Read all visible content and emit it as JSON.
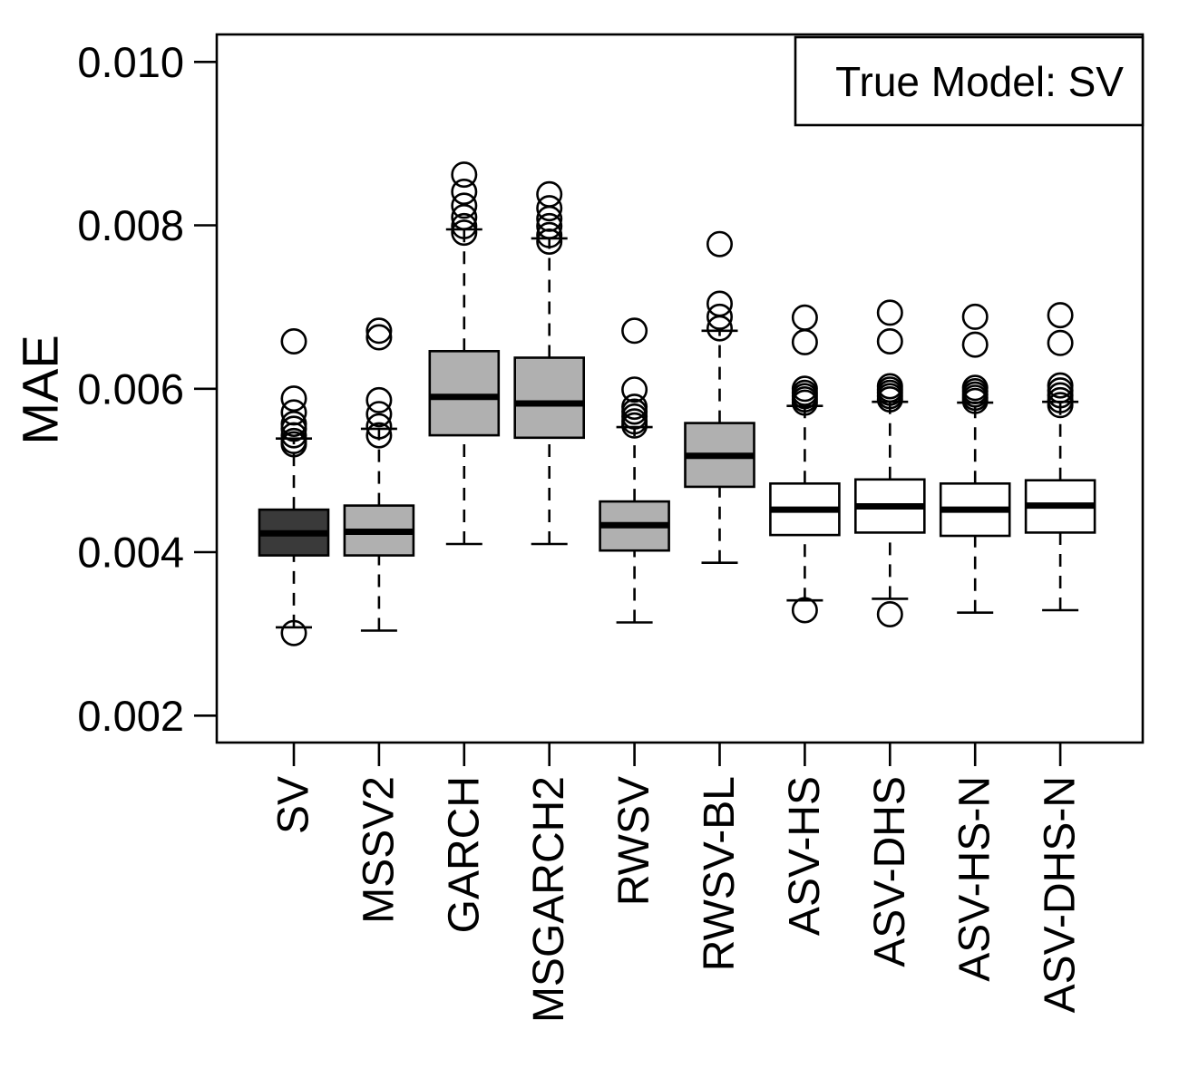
{
  "figure": {
    "background": "#ffffff",
    "frame_color": "#000000"
  },
  "chart_data": {
    "type": "boxplot",
    "title": "",
    "xlabel": "",
    "ylabel": "MAE",
    "legend": {
      "position": "top-right",
      "label": "True Model: SV"
    },
    "grid": false,
    "ylim": [
      0.00167,
      0.01034
    ],
    "ytick_values": [
      0.002,
      0.004,
      0.006,
      0.008,
      0.01
    ],
    "ytick_labels": [
      "0.002",
      "0.004",
      "0.006",
      "0.008",
      "0.010"
    ],
    "categories": [
      "SV",
      "MSSV2",
      "GARCH",
      "MSGARCH2",
      "RWSV",
      "RWSV-BL",
      "ASV-HS",
      "ASV-DHS",
      "ASV-HS-N",
      "ASV-DHS-N"
    ],
    "colors": {
      "highlight_fill": "#3a3a3a",
      "gray_fill": "#b0b0b0",
      "white_fill": "#ffffff",
      "stroke": "#000000"
    },
    "boxes": [
      {
        "label": "SV",
        "fill": "#3a3a3a",
        "whisker_low": 0.00308,
        "q1": 0.00396,
        "median": 0.00423,
        "q3": 0.00452,
        "whisker_high": 0.00539,
        "outliers": [
          0.00301,
          0.00532,
          0.00536,
          0.00543,
          0.00551,
          0.00557,
          0.00571,
          0.00588,
          0.00658
        ]
      },
      {
        "label": "MSSV2",
        "fill": "#b0b0b0",
        "whisker_low": 0.00304,
        "q1": 0.00396,
        "median": 0.00425,
        "q3": 0.00457,
        "whisker_high": 0.00551,
        "outliers": [
          0.00543,
          0.00554,
          0.00569,
          0.00586,
          0.00663,
          0.00671
        ]
      },
      {
        "label": "GARCH",
        "fill": "#b0b0b0",
        "whisker_low": 0.0041,
        "q1": 0.00543,
        "median": 0.0059,
        "q3": 0.00646,
        "whisker_high": 0.00795,
        "outliers": [
          0.00791,
          0.00799,
          0.0081,
          0.00824,
          0.00841,
          0.00862
        ]
      },
      {
        "label": "MSGARCH2",
        "fill": "#b0b0b0",
        "whisker_low": 0.0041,
        "q1": 0.0054,
        "median": 0.00582,
        "q3": 0.00638,
        "whisker_high": 0.00784,
        "outliers": [
          0.0078,
          0.00788,
          0.00799,
          0.00808,
          0.00821,
          0.00838
        ]
      },
      {
        "label": "RWSV",
        "fill": "#b0b0b0",
        "whisker_low": 0.00314,
        "q1": 0.00402,
        "median": 0.00433,
        "q3": 0.00462,
        "whisker_high": 0.00553,
        "outliers": [
          0.00555,
          0.0056,
          0.00566,
          0.00572,
          0.00578,
          0.00599,
          0.00671
        ]
      },
      {
        "label": "RWSV-BL",
        "fill": "#b0b0b0",
        "whisker_low": 0.00387,
        "q1": 0.0048,
        "median": 0.00518,
        "q3": 0.00558,
        "whisker_high": 0.00671,
        "outliers": [
          0.00674,
          0.00688,
          0.00704,
          0.00777
        ]
      },
      {
        "label": "ASV-HS",
        "fill": "#ffffff",
        "whisker_low": 0.00341,
        "q1": 0.00421,
        "median": 0.00452,
        "q3": 0.00484,
        "whisker_high": 0.00579,
        "outliers": [
          0.00329,
          0.00583,
          0.00587,
          0.00591,
          0.00595,
          0.006,
          0.00657,
          0.00687
        ]
      },
      {
        "label": "ASV-DHS",
        "fill": "#ffffff",
        "whisker_low": 0.00343,
        "q1": 0.00424,
        "median": 0.00456,
        "q3": 0.00489,
        "whisker_high": 0.00584,
        "outliers": [
          0.00324,
          0.00587,
          0.00591,
          0.00595,
          0.00599,
          0.00603,
          0.00658,
          0.00693
        ]
      },
      {
        "label": "ASV-HS-N",
        "fill": "#ffffff",
        "whisker_low": 0.00326,
        "q1": 0.0042,
        "median": 0.00452,
        "q3": 0.00484,
        "whisker_high": 0.00583,
        "outliers": [
          0.00585,
          0.00589,
          0.00593,
          0.00597,
          0.00601,
          0.00654,
          0.00688
        ]
      },
      {
        "label": "ASV-DHS-N",
        "fill": "#ffffff",
        "whisker_low": 0.00329,
        "q1": 0.00424,
        "median": 0.00457,
        "q3": 0.00488,
        "whisker_high": 0.00584,
        "outliers": [
          0.0058,
          0.00586,
          0.00592,
          0.00598,
          0.00604,
          0.00656,
          0.0069
        ]
      }
    ]
  }
}
